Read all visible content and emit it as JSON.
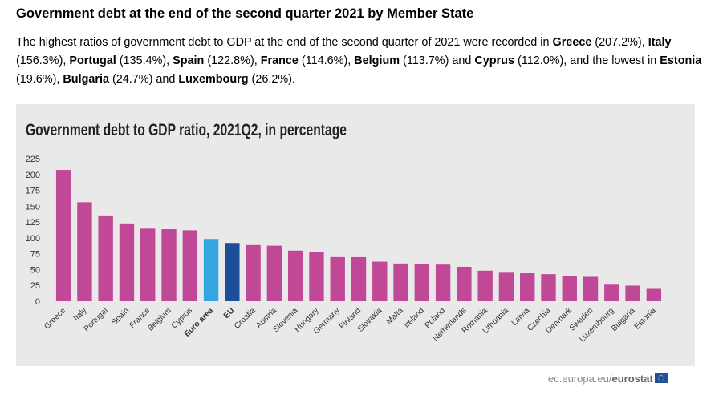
{
  "page": {
    "heading": "Government debt at the end of the second quarter 2021 by Member State",
    "intro_parts": [
      {
        "t": "The highest ratios of government debt to GDP at the end of the second quarter of 2021 were recorded in ",
        "b": false
      },
      {
        "t": "Greece",
        "b": true
      },
      {
        "t": " (207.2%), ",
        "b": false
      },
      {
        "t": "Italy",
        "b": true
      },
      {
        "t": " (156.3%), ",
        "b": false
      },
      {
        "t": "Portugal",
        "b": true
      },
      {
        "t": " (135.4%), ",
        "b": false
      },
      {
        "t": "Spain",
        "b": true
      },
      {
        "t": " (122.8%), ",
        "b": false
      },
      {
        "t": "France",
        "b": true
      },
      {
        "t": " (114.6%), ",
        "b": false
      },
      {
        "t": "Belgium",
        "b": true
      },
      {
        "t": " (113.7%) and ",
        "b": false
      },
      {
        "t": "Cyprus",
        "b": true
      },
      {
        "t": " (112.0%), and the lowest in ",
        "b": false
      },
      {
        "t": "Estonia",
        "b": true
      },
      {
        "t": " (19.6%), ",
        "b": false
      },
      {
        "t": "Bulgaria",
        "b": true
      },
      {
        "t": " (24.7%) and ",
        "b": false
      },
      {
        "t": "Luxembourg",
        "b": true
      },
      {
        "t": " (26.2%).",
        "b": false
      }
    ],
    "footer_site": "ec.europa.eu/",
    "footer_brand": "eurostat"
  },
  "chart_data": {
    "type": "bar",
    "title": "Government debt to GDP ratio, 2021Q2, in percentage",
    "xlabel": "",
    "ylabel": "",
    "ylim": [
      0,
      225
    ],
    "yticks": [
      0,
      25,
      50,
      75,
      100,
      125,
      150,
      175,
      200,
      225
    ],
    "grid": false,
    "categories": [
      "Greece",
      "Italy",
      "Portugal",
      "Spain",
      "France",
      "Belgium",
      "Cyprus",
      "Euro area",
      "EU",
      "Croatia",
      "Austria",
      "Slovenia",
      "Hungary",
      "Germany",
      "Finland",
      "Slovakia",
      "Malta",
      "Ireland",
      "Poland",
      "Netherlands",
      "Romania",
      "Lithuania",
      "Latvia",
      "Czechia",
      "Denmark",
      "Sweden",
      "Luxembourg",
      "Bulgaria",
      "Estonia"
    ],
    "values": [
      207.2,
      156.3,
      135.4,
      122.8,
      114.6,
      113.7,
      112.0,
      98.3,
      92.0,
      88.7,
      87.7,
      79.9,
      77.1,
      69.7,
      69.6,
      62.5,
      59.6,
      59.0,
      57.9,
      54.4,
      48.3,
      45.1,
      44.2,
      42.8,
      40.0,
      38.6,
      26.2,
      24.7,
      19.6
    ],
    "bold_categories": [
      "Euro area",
      "EU"
    ],
    "colors": {
      "member_state": "#c04896",
      "euro_area": "#33a5e0",
      "eu": "#1b4f9a"
    },
    "bar_colors_by_category": {
      "Euro area": "euro_area",
      "EU": "eu"
    }
  }
}
